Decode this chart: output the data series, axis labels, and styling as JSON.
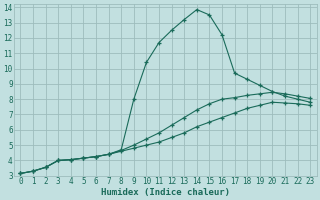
{
  "title": "",
  "xlabel": "Humidex (Indice chaleur)",
  "ylabel": "",
  "bg_color": "#c2e0e0",
  "grid_color": "#9dbdbd",
  "line_color": "#1a6b5a",
  "xlim": [
    -0.5,
    23.5
  ],
  "ylim": [
    3,
    14.2
  ],
  "xticks": [
    0,
    1,
    2,
    3,
    4,
    5,
    6,
    7,
    8,
    9,
    10,
    11,
    12,
    13,
    14,
    15,
    16,
    17,
    18,
    19,
    20,
    21,
    22,
    23
  ],
  "yticks": [
    3,
    4,
    5,
    6,
    7,
    8,
    9,
    10,
    11,
    12,
    13,
    14
  ],
  "line1_x": [
    0,
    1,
    2,
    3,
    4,
    5,
    6,
    7,
    8,
    9,
    10,
    11,
    12,
    13,
    14,
    15,
    16,
    17,
    18,
    19,
    20,
    21,
    22,
    23
  ],
  "line1_y": [
    3.15,
    3.3,
    3.55,
    4.0,
    4.05,
    4.15,
    4.25,
    4.4,
    4.6,
    4.8,
    5.0,
    5.2,
    5.5,
    5.8,
    6.2,
    6.5,
    6.8,
    7.1,
    7.4,
    7.6,
    7.8,
    7.75,
    7.7,
    7.6
  ],
  "line2_x": [
    0,
    1,
    2,
    3,
    4,
    5,
    6,
    7,
    8,
    9,
    10,
    11,
    12,
    13,
    14,
    15,
    16,
    17,
    18,
    19,
    20,
    21,
    22,
    23
  ],
  "line2_y": [
    3.15,
    3.3,
    3.55,
    4.0,
    4.05,
    4.15,
    4.25,
    4.4,
    4.65,
    5.0,
    5.4,
    5.8,
    6.3,
    6.8,
    7.3,
    7.7,
    8.0,
    8.1,
    8.25,
    8.35,
    8.45,
    8.35,
    8.2,
    8.05
  ],
  "line3_x": [
    0,
    1,
    2,
    3,
    4,
    5,
    6,
    7,
    8,
    9,
    10,
    11,
    12,
    13,
    14,
    15,
    16,
    17,
    18,
    19,
    20,
    21,
    22,
    23
  ],
  "line3_y": [
    3.15,
    3.3,
    3.55,
    4.0,
    4.05,
    4.15,
    4.25,
    4.4,
    4.7,
    8.0,
    10.4,
    11.7,
    12.5,
    13.2,
    13.85,
    13.5,
    12.2,
    9.7,
    9.3,
    8.9,
    8.5,
    8.2,
    8.0,
    7.8
  ],
  "marker": "+"
}
